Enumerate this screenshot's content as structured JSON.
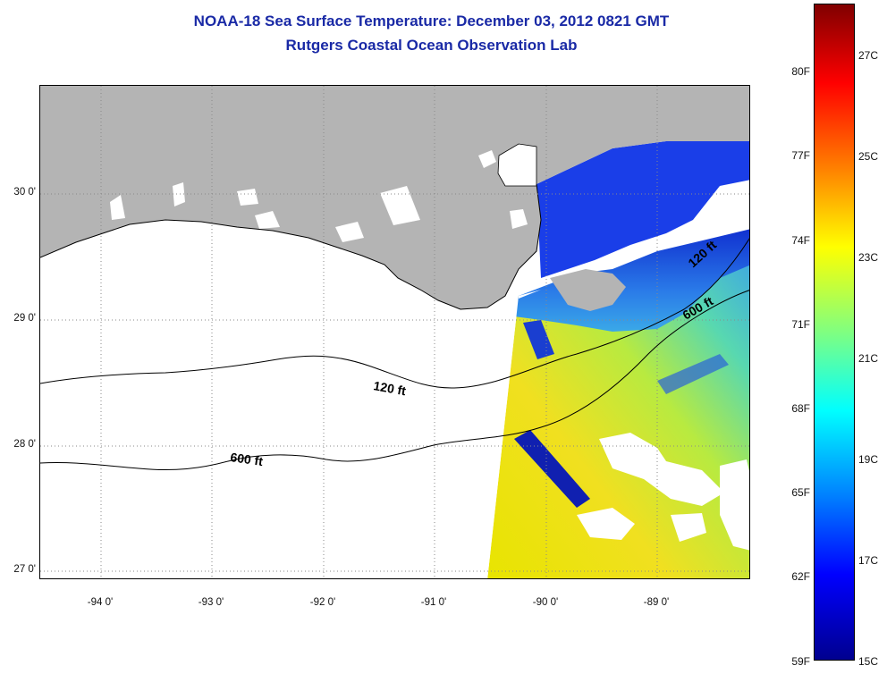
{
  "title": {
    "line1": "NOAA-18 Sea Surface Temperature:  December 03, 2012 0821 GMT",
    "line2": "Rutgers Coastal Ocean Observation Lab"
  },
  "map": {
    "lat_labels": [
      "30 0'",
      "29 0'",
      "28 0'",
      "27 0'"
    ],
    "lon_labels": [
      "-94 0'",
      "-93 0'",
      "-92 0'",
      "-91 0'",
      "-90 0'",
      "-89 0'"
    ],
    "contours": [
      {
        "label": "120 ft"
      },
      {
        "label": "600 ft"
      },
      {
        "label": "120 ft"
      },
      {
        "label": "600 ft"
      }
    ],
    "colors": {
      "land": "#b4b4b4",
      "ocean_no_data": "#ffffff",
      "grid": "#8a8a8a",
      "contour": "#000000"
    }
  },
  "colorbar": {
    "fahrenheit": [
      "80F",
      "77F",
      "74F",
      "71F",
      "68F",
      "65F",
      "62F",
      "59F"
    ],
    "celsius": [
      "27C",
      "25C",
      "23C",
      "21C",
      "19C",
      "17C",
      "15C"
    ],
    "gradient": [
      "#00008f",
      "#0000ff",
      "#0080ff",
      "#00ffff",
      "#80ff80",
      "#ffff00",
      "#ff8000",
      "#ff0000",
      "#800000"
    ]
  }
}
